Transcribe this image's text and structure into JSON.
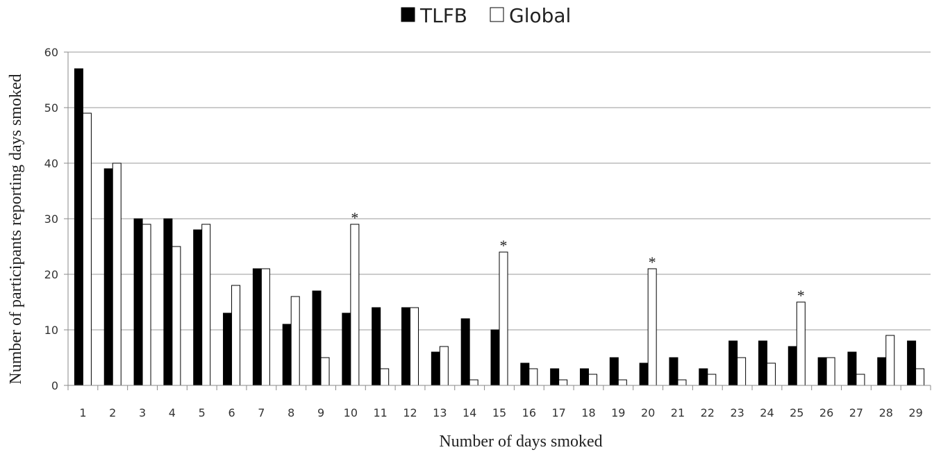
{
  "chart_data": {
    "type": "bar",
    "title": "",
    "xlabel": "Number of days smoked",
    "ylabel": "Number of participants reporting days smoked",
    "ylim": [
      0,
      60
    ],
    "yticks": [
      0,
      10,
      20,
      30,
      40,
      50,
      60
    ],
    "grid": true,
    "legend_position": "top-center",
    "categories": [
      "1",
      "2",
      "3",
      "4",
      "5",
      "6",
      "7",
      "8",
      "9",
      "10",
      "11",
      "12",
      "13",
      "14",
      "15",
      "16",
      "17",
      "18",
      "19",
      "20",
      "21",
      "22",
      "23",
      "24",
      "25",
      "26",
      "27",
      "28",
      "29"
    ],
    "series": [
      {
        "name": "TLFB",
        "color": "#000000",
        "values": [
          57,
          39,
          30,
          30,
          28,
          13,
          21,
          11,
          17,
          13,
          14,
          14,
          6,
          12,
          10,
          4,
          3,
          3,
          5,
          4,
          5,
          3,
          8,
          8,
          7,
          5,
          6,
          5,
          8
        ]
      },
      {
        "name": "Global",
        "color": "#ffffff",
        "values": [
          49,
          40,
          29,
          25,
          29,
          18,
          21,
          16,
          5,
          29,
          3,
          14,
          7,
          1,
          24,
          3,
          1,
          2,
          1,
          21,
          1,
          2,
          5,
          4,
          15,
          5,
          2,
          9,
          3
        ]
      }
    ],
    "annotations": [
      {
        "category": "10",
        "text": "*"
      },
      {
        "category": "15",
        "text": "*"
      },
      {
        "category": "20",
        "text": "*"
      },
      {
        "category": "25",
        "text": "*"
      }
    ]
  }
}
